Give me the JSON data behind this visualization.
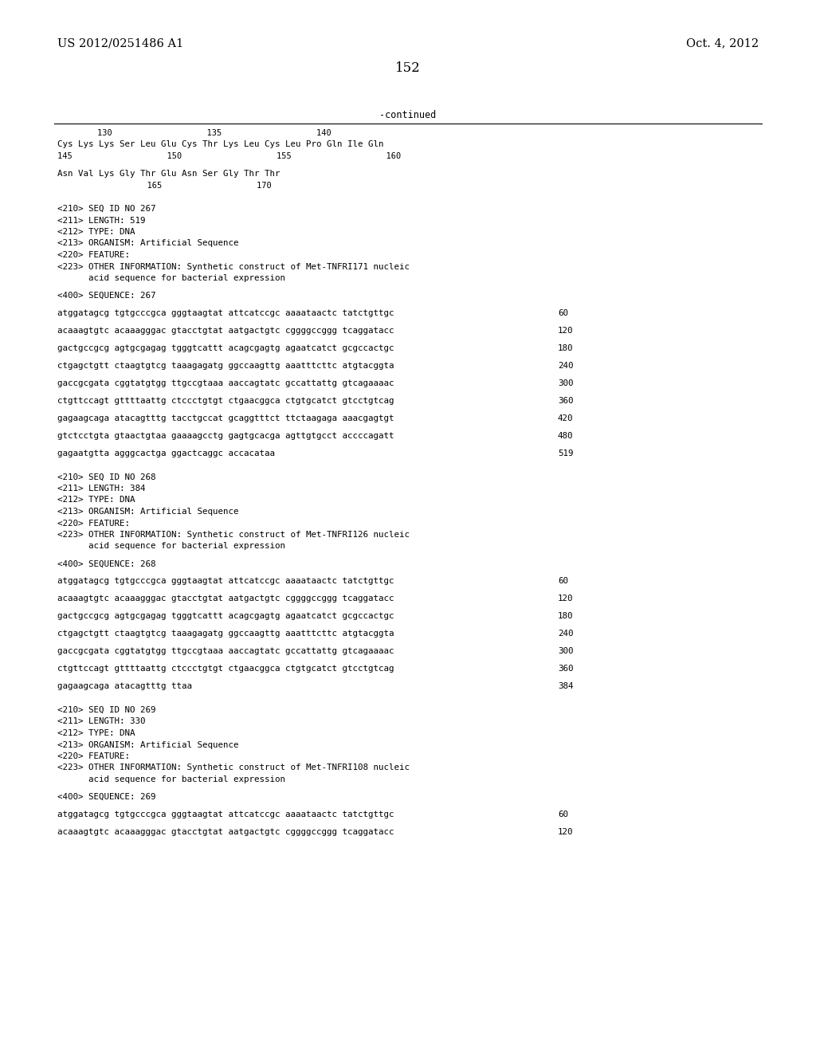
{
  "header_left": "US 2012/0251486 A1",
  "header_right": "Oct. 4, 2012",
  "page_number": "152",
  "continued_label": "-continued",
  "background_color": "#ffffff",
  "text_color": "#000000",
  "content_lines": [
    {
      "type": "numbering",
      "text": "        130                   135                   140"
    },
    {
      "type": "sequence",
      "text": "Cys Lys Lys Ser Leu Glu Cys Thr Lys Leu Cys Leu Pro Gln Ile Gln"
    },
    {
      "type": "numbering",
      "text": "145                   150                   155                   160"
    },
    {
      "type": "blank"
    },
    {
      "type": "sequence",
      "text": "Asn Val Lys Gly Thr Glu Asn Ser Gly Thr Thr"
    },
    {
      "type": "numbering",
      "text": "                  165                   170"
    },
    {
      "type": "blank"
    },
    {
      "type": "blank"
    },
    {
      "type": "meta",
      "text": "<210> SEQ ID NO 267"
    },
    {
      "type": "meta",
      "text": "<211> LENGTH: 519"
    },
    {
      "type": "meta",
      "text": "<212> TYPE: DNA"
    },
    {
      "type": "meta",
      "text": "<213> ORGANISM: Artificial Sequence"
    },
    {
      "type": "meta",
      "text": "<220> FEATURE:"
    },
    {
      "type": "meta",
      "text": "<223> OTHER INFORMATION: Synthetic construct of Met-TNFRI171 nucleic"
    },
    {
      "type": "meta",
      "text": "      acid sequence for bacterial expression"
    },
    {
      "type": "blank"
    },
    {
      "type": "meta",
      "text": "<400> SEQUENCE: 267"
    },
    {
      "type": "blank"
    },
    {
      "type": "dna",
      "text": "atggatagcg tgtgcccgca gggtaagtat attcatccgc aaaataactc tatctgttgc",
      "num": "60"
    },
    {
      "type": "blank"
    },
    {
      "type": "dna",
      "text": "acaaagtgtc acaaagggac gtacctgtat aatgactgtc cggggccggg tcaggatacc",
      "num": "120"
    },
    {
      "type": "blank"
    },
    {
      "type": "dna",
      "text": "gactgccgcg agtgcgagag tgggtcattt acagcgagtg agaatcatct gcgccactgc",
      "num": "180"
    },
    {
      "type": "blank"
    },
    {
      "type": "dna",
      "text": "ctgagctgtt ctaagtgtcg taaagagatg ggccaagttg aaatttcttc atgtacggta",
      "num": "240"
    },
    {
      "type": "blank"
    },
    {
      "type": "dna",
      "text": "gaccgcgata cggtatgtgg ttgccgtaaa aaccagtatc gccattattg gtcagaaaac",
      "num": "300"
    },
    {
      "type": "blank"
    },
    {
      "type": "dna",
      "text": "ctgttccagt gttttaattg ctccctgtgt ctgaacggca ctgtgcatct gtcctgtcag",
      "num": "360"
    },
    {
      "type": "blank"
    },
    {
      "type": "dna",
      "text": "gagaagcaga atacagtttg tacctgccat gcaggtttct ttctaagaga aaacgagtgt",
      "num": "420"
    },
    {
      "type": "blank"
    },
    {
      "type": "dna",
      "text": "gtctcctgta gtaactgtaa gaaaagcctg gagtgcacga agttgtgcct accccagatt",
      "num": "480"
    },
    {
      "type": "blank"
    },
    {
      "type": "dna",
      "text": "gagaatgtta agggcactga ggactcaggc accacataa",
      "num": "519"
    },
    {
      "type": "blank"
    },
    {
      "type": "blank"
    },
    {
      "type": "meta",
      "text": "<210> SEQ ID NO 268"
    },
    {
      "type": "meta",
      "text": "<211> LENGTH: 384"
    },
    {
      "type": "meta",
      "text": "<212> TYPE: DNA"
    },
    {
      "type": "meta",
      "text": "<213> ORGANISM: Artificial Sequence"
    },
    {
      "type": "meta",
      "text": "<220> FEATURE:"
    },
    {
      "type": "meta",
      "text": "<223> OTHER INFORMATION: Synthetic construct of Met-TNFRI126 nucleic"
    },
    {
      "type": "meta",
      "text": "      acid sequence for bacterial expression"
    },
    {
      "type": "blank"
    },
    {
      "type": "meta",
      "text": "<400> SEQUENCE: 268"
    },
    {
      "type": "blank"
    },
    {
      "type": "dna",
      "text": "atggatagcg tgtgcccgca gggtaagtat attcatccgc aaaataactc tatctgttgc",
      "num": "60"
    },
    {
      "type": "blank"
    },
    {
      "type": "dna",
      "text": "acaaagtgtc acaaagggac gtacctgtat aatgactgtc cggggccggg tcaggatacc",
      "num": "120"
    },
    {
      "type": "blank"
    },
    {
      "type": "dna",
      "text": "gactgccgcg agtgcgagag tgggtcattt acagcgagtg agaatcatct gcgccactgc",
      "num": "180"
    },
    {
      "type": "blank"
    },
    {
      "type": "dna",
      "text": "ctgagctgtt ctaagtgtcg taaagagatg ggccaagttg aaatttcttc atgtacggta",
      "num": "240"
    },
    {
      "type": "blank"
    },
    {
      "type": "dna",
      "text": "gaccgcgata cggtatgtgg ttgccgtaaa aaccagtatc gccattattg gtcagaaaac",
      "num": "300"
    },
    {
      "type": "blank"
    },
    {
      "type": "dna",
      "text": "ctgttccagt gttttaattg ctccctgtgt ctgaacggca ctgtgcatct gtcctgtcag",
      "num": "360"
    },
    {
      "type": "blank"
    },
    {
      "type": "dna",
      "text": "gagaagcaga atacagtttg ttaa",
      "num": "384"
    },
    {
      "type": "blank"
    },
    {
      "type": "blank"
    },
    {
      "type": "meta",
      "text": "<210> SEQ ID NO 269"
    },
    {
      "type": "meta",
      "text": "<211> LENGTH: 330"
    },
    {
      "type": "meta",
      "text": "<212> TYPE: DNA"
    },
    {
      "type": "meta",
      "text": "<213> ORGANISM: Artificial Sequence"
    },
    {
      "type": "meta",
      "text": "<220> FEATURE:"
    },
    {
      "type": "meta",
      "text": "<223> OTHER INFORMATION: Synthetic construct of Met-TNFRI108 nucleic"
    },
    {
      "type": "meta",
      "text": "      acid sequence for bacterial expression"
    },
    {
      "type": "blank"
    },
    {
      "type": "meta",
      "text": "<400> SEQUENCE: 269"
    },
    {
      "type": "blank"
    },
    {
      "type": "dna",
      "text": "atggatagcg tgtgcccgca gggtaagtat attcatccgc aaaataactc tatctgttgc",
      "num": "60"
    },
    {
      "type": "blank"
    },
    {
      "type": "dna",
      "text": "acaaagtgtc acaaagggac gtacctgtat aatgactgtc cggggccggg tcaggatacc",
      "num": "120"
    }
  ]
}
